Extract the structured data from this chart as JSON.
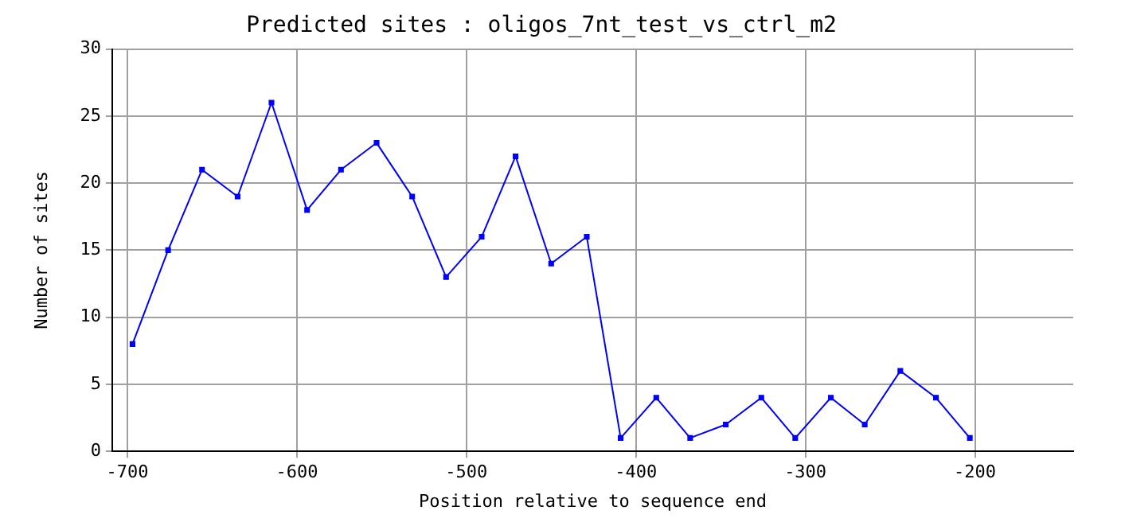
{
  "chart_data": {
    "type": "line",
    "title": "Predicted sites : oligos_7nt_test_vs_ctrl_m2",
    "xlabel": "Position relative to sequence end",
    "ylabel": "Number of sites",
    "x": [
      -697,
      -676,
      -656,
      -635,
      -615,
      -594,
      -574,
      -553,
      -532,
      -512,
      -491,
      -471,
      -450,
      -429,
      -409,
      -388,
      -368,
      -347,
      -326,
      -306,
      -285,
      -265,
      -244,
      -223,
      -203
    ],
    "series": [
      {
        "color": "#0000ff",
        "values": [
          8,
          15,
          21,
          19,
          26,
          18,
          21,
          23,
          19,
          13,
          16,
          22,
          14,
          16,
          1,
          4,
          1,
          2,
          4,
          1,
          4,
          2,
          6,
          4,
          1
        ]
      }
    ],
    "xlim": [
      -709,
      -142
    ],
    "xticks": [
      -700,
      -600,
      -500,
      -400,
      -300,
      -200
    ],
    "ylim": [
      0,
      30
    ],
    "yticks": [
      0,
      5,
      10,
      15,
      20,
      25,
      30
    ],
    "grid": true,
    "legend": false,
    "marker": "square",
    "line_style": "solid"
  }
}
